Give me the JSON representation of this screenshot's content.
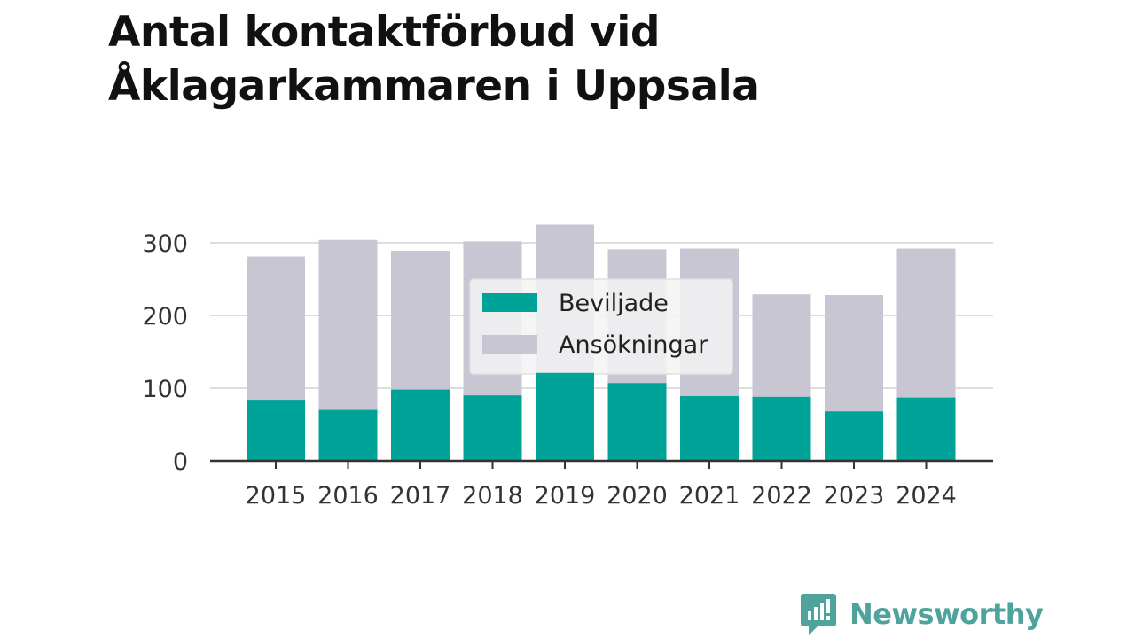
{
  "title": "Antal kontaktförbud vid Åklagarkammaren i Uppsala",
  "brand": {
    "name": "Newsworthy",
    "icon": "newsworthy-chart-bubble-icon",
    "color": "#4ea39d"
  },
  "colors": {
    "beviljade": "#00a398",
    "ansokningar": "#c8c6d2",
    "grid": "#dddddd",
    "axis": "#333333"
  },
  "chart_data": {
    "type": "bar",
    "stacking": "overlay",
    "title": "Antal kontaktförbud vid Åklagarkammaren i Uppsala",
    "xlabel": "",
    "ylabel": "",
    "categories": [
      "2015",
      "2016",
      "2017",
      "2018",
      "2019",
      "2020",
      "2021",
      "2022",
      "2023",
      "2024"
    ],
    "series": [
      {
        "name": "Ansökningar",
        "values": [
          281,
          304,
          289,
          302,
          325,
          291,
          292,
          229,
          228,
          292
        ]
      },
      {
        "name": "Beviljade",
        "values": [
          84,
          70,
          98,
          90,
          121,
          107,
          89,
          88,
          68,
          87
        ]
      }
    ],
    "yticks": [
      0,
      100,
      200,
      300
    ],
    "ylim": [
      0,
      330
    ],
    "grid": true,
    "legend": {
      "position": "top-center",
      "entries": [
        "Beviljade",
        "Ansökningar"
      ]
    }
  }
}
